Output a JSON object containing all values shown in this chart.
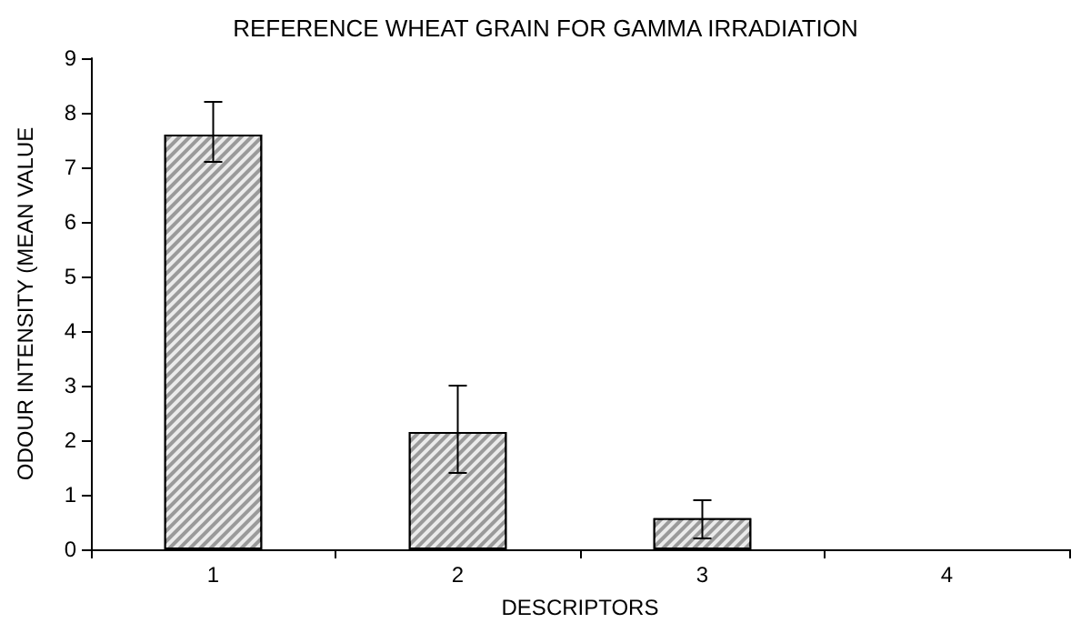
{
  "chart_data": {
    "type": "bar",
    "title": "REFERENCE WHEAT GRAIN FOR GAMMA IRRADIATION",
    "xlabel": "DESCRIPTORS",
    "ylabel": "ODOUR INTENSITY (MEAN VALUE",
    "categories": [
      "1",
      "2",
      "3",
      "4"
    ],
    "values": [
      7.6,
      2.15,
      0.57,
      0
    ],
    "errors": [
      [
        7.1,
        8.2
      ],
      [
        1.4,
        3.0
      ],
      [
        0.2,
        0.9
      ],
      null
    ],
    "color": "#9a9a9a",
    "ylim": [
      0,
      9
    ],
    "yticks": [
      0,
      1,
      2,
      3,
      4,
      5,
      6,
      7,
      8,
      9
    ],
    "grid": false
  }
}
